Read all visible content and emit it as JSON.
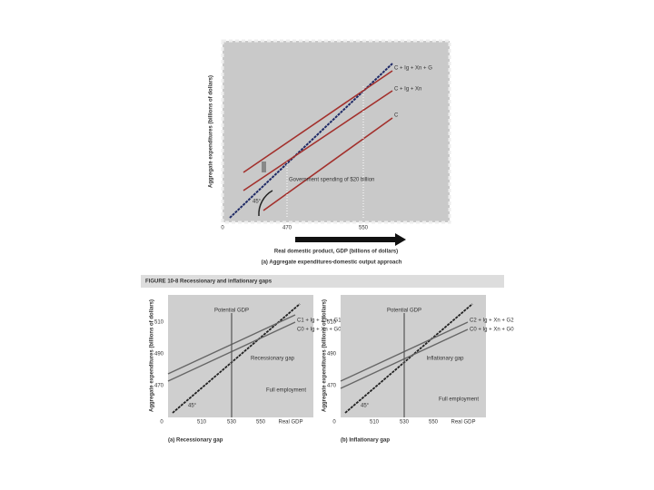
{
  "figure_a": {
    "y_label": "Aggregate expenditures (billions of dollars)",
    "line_labels": [
      "C + Ig + Xn + G",
      "C + Ig + Xn",
      "C"
    ],
    "annotation": "Government spending of $20 billion",
    "angle": "45°",
    "x_ticks": [
      "0",
      "470",
      "550"
    ],
    "x_label": "Real domestic product, GDP (billions of dollars)",
    "caption": "(a) Aggregate expenditures-domestic output approach"
  },
  "header": "FIGURE 10-8 Recessionary and inflationary gaps",
  "panels": [
    {
      "y_label": "Aggregate expenditures (billions of dollars)",
      "y_ticks": [
        "510",
        "490",
        "470"
      ],
      "potential": "Potential GDP",
      "line_labels": [
        "C1 + Ig + Xn + G1",
        "C0 + Ig + Xn + G0"
      ],
      "gap": "Recessionary gap",
      "full": "Full employment",
      "angle": "45°",
      "x_ticks": [
        "0",
        "510",
        "530",
        "550",
        "Real GDP"
      ],
      "caption": "(a) Recessionary gap"
    },
    {
      "y_label": "Aggregate expenditures (billions of dollars)",
      "y_ticks": [
        "510",
        "490",
        "470"
      ],
      "potential": "Potential GDP",
      "line_labels": [
        "C2 + Ig + Xn + G2",
        "C0 + Ig + Xn + G0"
      ],
      "gap": "Inflationary gap",
      "full": "Full employment",
      "angle": "45°",
      "x_ticks": [
        "0",
        "510",
        "530",
        "550",
        "Real GDP"
      ],
      "caption": "(b) Inflationary gap"
    }
  ]
}
